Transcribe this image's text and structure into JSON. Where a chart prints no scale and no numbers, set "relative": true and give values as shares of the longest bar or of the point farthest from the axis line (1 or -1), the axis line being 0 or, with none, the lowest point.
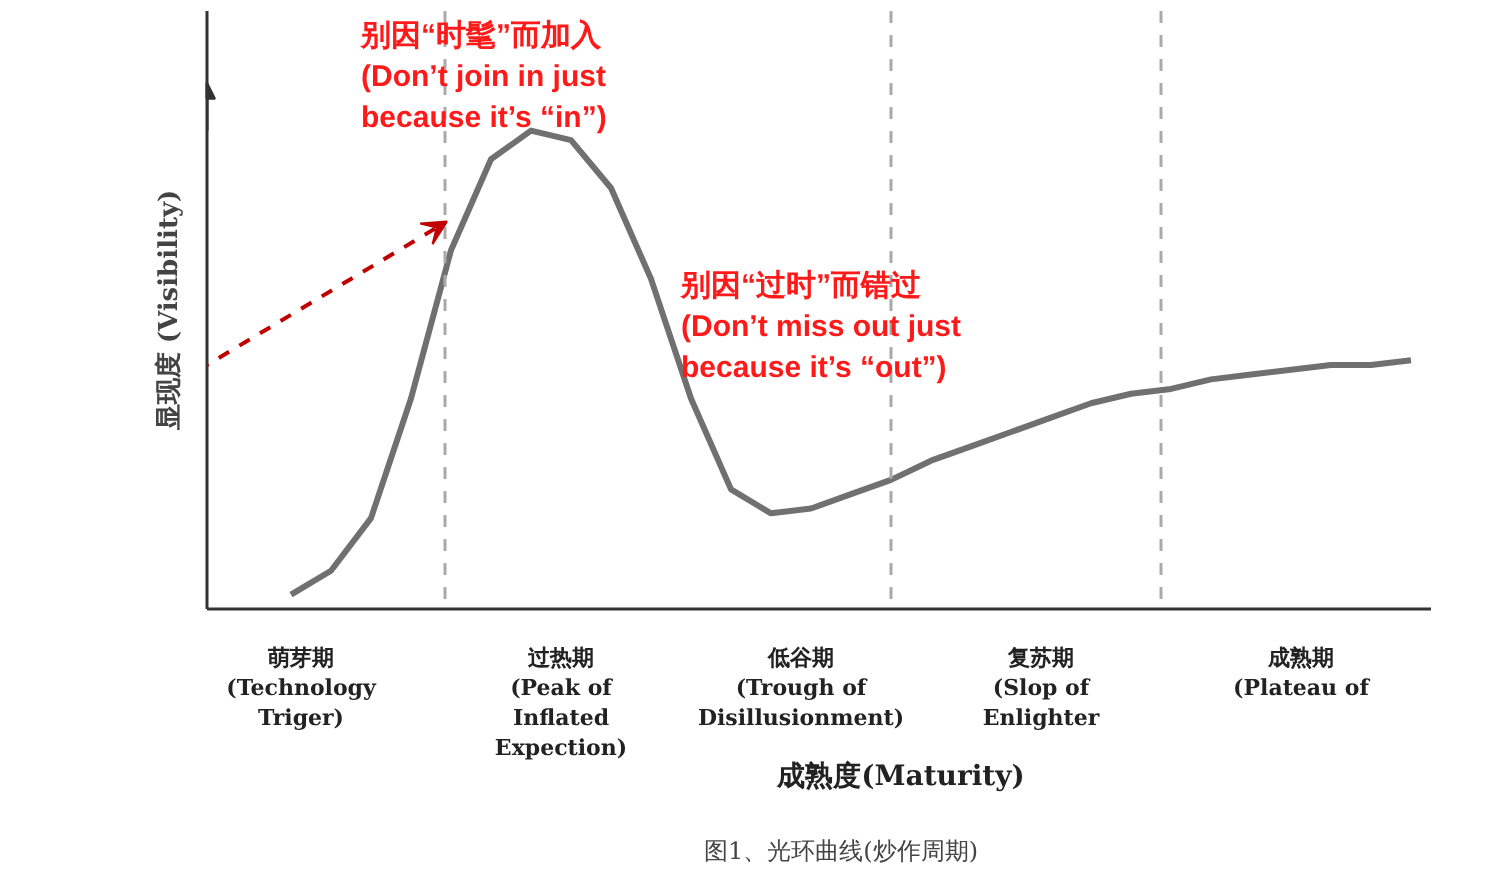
{
  "chart_data": {
    "type": "line",
    "relative": true,
    "ylabel": "显现度 (Visibility)",
    "categories": [
      null,
      null,
      null,
      null,
      null,
      null,
      null,
      null,
      null,
      null,
      null,
      null,
      null,
      null,
      null,
      null,
      null,
      null,
      null,
      null,
      null,
      null,
      null,
      null,
      null,
      null,
      null,
      null,
      null
    ],
    "series": [
      {
        "color": "#707070",
        "values": [
          0.03,
          0.08,
          0.19,
          0.44,
          0.75,
          0.94,
          1.0,
          0.98,
          0.88,
          0.69,
          0.44,
          0.25,
          0.2,
          0.21,
          0.24,
          0.27,
          0.31,
          0.34,
          0.37,
          0.4,
          0.43,
          0.45,
          0.46,
          0.48,
          0.49,
          0.5,
          0.51,
          0.51,
          0.52
        ]
      }
    ],
    "annotations": [
      "萌芽期\n(Technology\nTriger)",
      "过热期\n(Peak of\nInflated\nExpection)",
      "低谷期\n(Trough of\nDisillusionment)",
      "复苏期\n(Slop of\nEnlighter",
      "成熟期\n(Plateau of",
      "别因“时髦”而加入\n(Don’t join in just\nbecause it’s “in”)",
      "别因“过时”而错过\n(Don’t miss out just\nbecause it’s “out”)",
      "成熟度(Maturity)",
      "图1、光环曲线(炒作周期)"
    ],
    "grid": false,
    "marker": "none",
    "line_style": "solid"
  }
}
